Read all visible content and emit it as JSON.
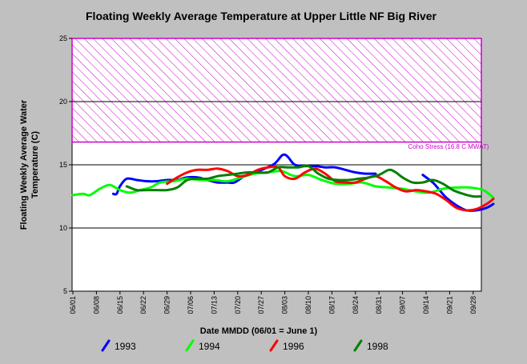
{
  "chart_data": {
    "type": "line",
    "title": "Floating Weekly Average Temperature at Upper Little NF Big River",
    "xlabel": "Date MMDD (06/01 = June 1)",
    "ylabel_line1": "Floating Weekly Average Water",
    "ylabel_line2": "Temperature (C)",
    "ylim": [
      5,
      25
    ],
    "y_ticks": [
      "5",
      "10",
      "15",
      "20",
      "25"
    ],
    "y_tick_values": [
      5,
      10,
      15,
      20,
      25
    ],
    "x_ticks": [
      "06/01",
      "06/08",
      "06/15",
      "06/22",
      "06/29",
      "07/06",
      "07/13",
      "07/20",
      "07/27",
      "08/03",
      "08/10",
      "08/17",
      "08/24",
      "08/31",
      "09/07",
      "09/14",
      "09/21",
      "09/28"
    ],
    "x_day_range": [
      0,
      120
    ],
    "grid": "horizontal",
    "threshold": {
      "value": 16.8,
      "upper": 25,
      "label": "Coho Stress (16.8 C MWAT)",
      "color": "#cc00cc"
    },
    "series": [
      {
        "name": "1993",
        "color": "#0000ff",
        "points": [
          [
            12,
            12.7
          ],
          [
            13,
            12.7
          ],
          [
            14,
            13.3
          ],
          [
            16,
            13.9
          ],
          [
            19,
            13.8
          ],
          [
            22,
            13.7
          ],
          [
            25,
            13.7
          ],
          [
            28,
            13.8
          ],
          [
            31,
            13.8
          ],
          [
            34,
            14.0
          ],
          [
            37,
            14.0
          ],
          [
            40,
            13.8
          ],
          [
            43,
            13.6
          ],
          [
            46,
            13.6
          ],
          [
            48,
            13.6
          ],
          [
            51,
            14.1
          ],
          [
            54,
            14.4
          ],
          [
            57,
            14.7
          ],
          [
            60,
            15.1
          ],
          [
            62,
            15.7
          ],
          [
            63,
            15.8
          ],
          [
            64,
            15.6
          ],
          [
            66,
            15.0
          ],
          [
            69,
            14.9
          ],
          [
            72,
            14.9
          ],
          [
            75,
            14.8
          ],
          [
            78,
            14.8
          ],
          [
            81,
            14.6
          ],
          [
            84,
            14.4
          ],
          [
            87,
            14.3
          ],
          [
            90,
            14.3
          ]
        ],
        "points2": [
          [
            104,
            14.2
          ],
          [
            107,
            13.6
          ],
          [
            109,
            13.0
          ],
          [
            111,
            12.4
          ],
          [
            114,
            11.8
          ],
          [
            117,
            11.4
          ],
          [
            120,
            11.4
          ],
          [
            123,
            11.6
          ],
          [
            125,
            11.9
          ]
        ]
      },
      {
        "name": "1994",
        "color": "#00ff00",
        "points": [
          [
            0,
            12.6
          ],
          [
            3,
            12.7
          ],
          [
            5,
            12.6
          ],
          [
            8,
            13.1
          ],
          [
            11,
            13.4
          ],
          [
            14,
            13.0
          ],
          [
            17,
            12.8
          ],
          [
            20,
            13.0
          ],
          [
            23,
            13.2
          ],
          [
            26,
            13.6
          ],
          [
            30,
            13.7
          ],
          [
            34,
            13.9
          ],
          [
            38,
            13.8
          ],
          [
            42,
            13.8
          ],
          [
            46,
            13.7
          ],
          [
            50,
            14.0
          ],
          [
            54,
            14.3
          ],
          [
            58,
            14.4
          ],
          [
            62,
            14.5
          ],
          [
            66,
            14.1
          ],
          [
            70,
            14.2
          ],
          [
            74,
            13.8
          ],
          [
            78,
            13.5
          ],
          [
            82,
            13.5
          ],
          [
            86,
            13.6
          ],
          [
            90,
            13.3
          ],
          [
            94,
            13.2
          ],
          [
            98,
            13.1
          ],
          [
            102,
            12.9
          ],
          [
            106,
            12.8
          ],
          [
            110,
            13.1
          ],
          [
            114,
            13.2
          ],
          [
            118,
            13.2
          ],
          [
            122,
            13.0
          ],
          [
            125,
            12.4
          ]
        ]
      },
      {
        "name": "1996",
        "color": "#ff0000",
        "points": [
          [
            28,
            13.5
          ],
          [
            31,
            14.0
          ],
          [
            34,
            14.4
          ],
          [
            37,
            14.6
          ],
          [
            40,
            14.6
          ],
          [
            43,
            14.7
          ],
          [
            46,
            14.5
          ],
          [
            49,
            14.1
          ],
          [
            52,
            14.2
          ],
          [
            55,
            14.6
          ],
          [
            58,
            14.8
          ],
          [
            61,
            14.8
          ],
          [
            63,
            14.1
          ],
          [
            66,
            13.9
          ],
          [
            69,
            14.4
          ],
          [
            72,
            14.7
          ],
          [
            75,
            14.3
          ],
          [
            78,
            13.7
          ],
          [
            81,
            13.6
          ],
          [
            84,
            13.6
          ],
          [
            87,
            13.9
          ],
          [
            90,
            14.1
          ],
          [
            93,
            13.7
          ],
          [
            96,
            13.2
          ],
          [
            99,
            12.9
          ],
          [
            102,
            13.0
          ],
          [
            105,
            12.9
          ],
          [
            108,
            12.7
          ],
          [
            111,
            12.2
          ],
          [
            114,
            11.6
          ],
          [
            117,
            11.4
          ],
          [
            120,
            11.5
          ],
          [
            123,
            11.9
          ],
          [
            125,
            12.3
          ]
        ]
      },
      {
        "name": "1998",
        "color": "#008000",
        "points": [
          [
            16,
            13.3
          ],
          [
            19,
            13.0
          ],
          [
            22,
            13.0
          ],
          [
            25,
            13.0
          ],
          [
            28,
            13.0
          ],
          [
            31,
            13.2
          ],
          [
            34,
            13.8
          ],
          [
            37,
            13.9
          ],
          [
            40,
            13.9
          ],
          [
            43,
            14.1
          ],
          [
            46,
            14.2
          ],
          [
            49,
            14.3
          ],
          [
            52,
            14.4
          ],
          [
            55,
            14.4
          ],
          [
            58,
            14.4
          ],
          [
            61,
            14.8
          ],
          [
            64,
            14.8
          ],
          [
            67,
            14.8
          ],
          [
            70,
            14.9
          ],
          [
            73,
            14.3
          ],
          [
            76,
            13.9
          ],
          [
            79,
            13.8
          ],
          [
            82,
            13.8
          ],
          [
            85,
            13.9
          ],
          [
            88,
            14.0
          ],
          [
            91,
            14.2
          ],
          [
            94,
            14.6
          ],
          [
            96,
            14.4
          ],
          [
            98,
            14.0
          ],
          [
            101,
            13.6
          ],
          [
            104,
            13.6
          ],
          [
            107,
            13.8
          ],
          [
            110,
            13.5
          ],
          [
            113,
            13.0
          ],
          [
            116,
            12.7
          ],
          [
            119,
            12.5
          ],
          [
            121,
            12.5
          ]
        ]
      }
    ],
    "legend_position": "bottom"
  }
}
